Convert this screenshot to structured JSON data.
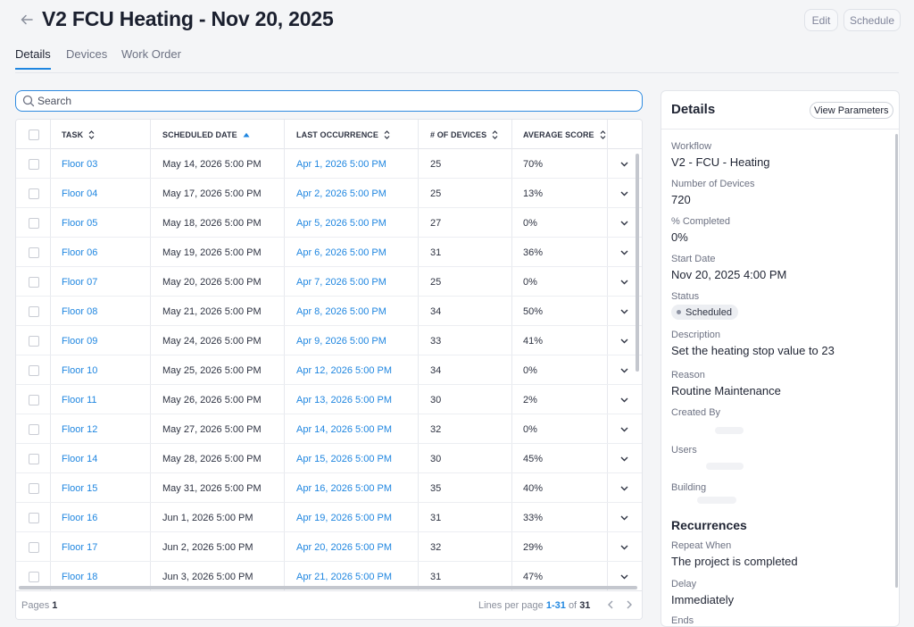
{
  "header": {
    "title": "V2 FCU Heating - Nov 20, 2025",
    "edit_label": "Edit",
    "schedule_label": "Schedule"
  },
  "tabs": [
    {
      "label": "Details",
      "active": true
    },
    {
      "label": "Devices",
      "active": false
    },
    {
      "label": "Work Order",
      "active": false
    }
  ],
  "search": {
    "placeholder": "Search",
    "value": ""
  },
  "table": {
    "columns": {
      "task": "TASK",
      "scheduled_date": "SCHEDULED DATE",
      "last_occurrence": "LAST OCCURRENCE",
      "devices": "# OF DEVICES",
      "average_score": "AVERAGE SCORE"
    },
    "sorted_column": "scheduled_date",
    "sort_direction": "ascending",
    "rows": [
      {
        "task": "Floor 03",
        "scheduled": "May 14, 2026 5:00 PM",
        "last": "Apr 1, 2026 5:00 PM",
        "devices": "25",
        "score": "70%"
      },
      {
        "task": "Floor 04",
        "scheduled": "May 17, 2026 5:00 PM",
        "last": "Apr 2, 2026 5:00 PM",
        "devices": "25",
        "score": "13%"
      },
      {
        "task": "Floor 05",
        "scheduled": "May 18, 2026 5:00 PM",
        "last": "Apr 5, 2026 5:00 PM",
        "devices": "27",
        "score": "0%"
      },
      {
        "task": "Floor 06",
        "scheduled": "May 19, 2026 5:00 PM",
        "last": "Apr 6, 2026 5:00 PM",
        "devices": "31",
        "score": "36%"
      },
      {
        "task": "Floor 07",
        "scheduled": "May 20, 2026 5:00 PM",
        "last": "Apr 7, 2026 5:00 PM",
        "devices": "25",
        "score": "0%"
      },
      {
        "task": "Floor 08",
        "scheduled": "May 21, 2026 5:00 PM",
        "last": "Apr 8, 2026 5:00 PM",
        "devices": "34",
        "score": "50%"
      },
      {
        "task": "Floor 09",
        "scheduled": "May 24, 2026 5:00 PM",
        "last": "Apr 9, 2026 5:00 PM",
        "devices": "33",
        "score": "41%"
      },
      {
        "task": "Floor 10",
        "scheduled": "May 25, 2026 5:00 PM",
        "last": "Apr 12, 2026 5:00 PM",
        "devices": "34",
        "score": "0%"
      },
      {
        "task": "Floor 11",
        "scheduled": "May 26, 2026 5:00 PM",
        "last": "Apr 13, 2026 5:00 PM",
        "devices": "30",
        "score": "2%"
      },
      {
        "task": "Floor 12",
        "scheduled": "May 27, 2026 5:00 PM",
        "last": "Apr 14, 2026 5:00 PM",
        "devices": "32",
        "score": "0%"
      },
      {
        "task": "Floor 14",
        "scheduled": "May 28, 2026 5:00 PM",
        "last": "Apr 15, 2026 5:00 PM",
        "devices": "30",
        "score": "45%"
      },
      {
        "task": "Floor 15",
        "scheduled": "May 31, 2026 5:00 PM",
        "last": "Apr 16, 2026 5:00 PM",
        "devices": "35",
        "score": "40%"
      },
      {
        "task": "Floor 16",
        "scheduled": "Jun 1, 2026 5:00 PM",
        "last": "Apr 19, 2026 5:00 PM",
        "devices": "31",
        "score": "33%"
      },
      {
        "task": "Floor 17",
        "scheduled": "Jun 2, 2026 5:00 PM",
        "last": "Apr 20, 2026 5:00 PM",
        "devices": "32",
        "score": "29%"
      },
      {
        "task": "Floor 18",
        "scheduled": "Jun 3, 2026 5:00 PM",
        "last": "Apr 21, 2026 5:00 PM",
        "devices": "31",
        "score": "47%"
      }
    ]
  },
  "footer": {
    "pages_label": "Pages",
    "pages_value": "1",
    "lines_label": "Lines per page",
    "lines_range": "1-31",
    "of_label": "of",
    "lines_total": "31"
  },
  "details": {
    "title": "Details",
    "view_parameters_label": "View Parameters",
    "workflow_label": "Workflow",
    "workflow_value": "V2 - FCU - Heating",
    "devices_label": "Number of Devices",
    "devices_value": "720",
    "completed_label": "% Completed",
    "completed_value": "0%",
    "start_label": "Start Date",
    "start_value": "Nov 20, 2025 4:00 PM",
    "status_label": "Status",
    "status_value": "Scheduled",
    "description_label": "Description",
    "description_value": "Set the heating stop value to 23",
    "reason_label": "Reason",
    "reason_value": "Routine Maintenance",
    "created_by_label": "Created By",
    "users_label": "Users",
    "building_label": "Building",
    "recurrences_title": "Recurrences",
    "repeat_label": "Repeat When",
    "repeat_value": "The project is completed",
    "delay_label": "Delay",
    "delay_value": "Immediately",
    "ends_label": "Ends"
  },
  "colors": {
    "accent": "#1f86e0",
    "text": "#1f2433",
    "muted": "#6d7283"
  },
  "icons": [
    "back-arrow-icon",
    "search-icon",
    "sort-icon",
    "sort-ascending-icon",
    "chevron-down-icon",
    "chevron-left-icon",
    "chevron-right-icon"
  ]
}
